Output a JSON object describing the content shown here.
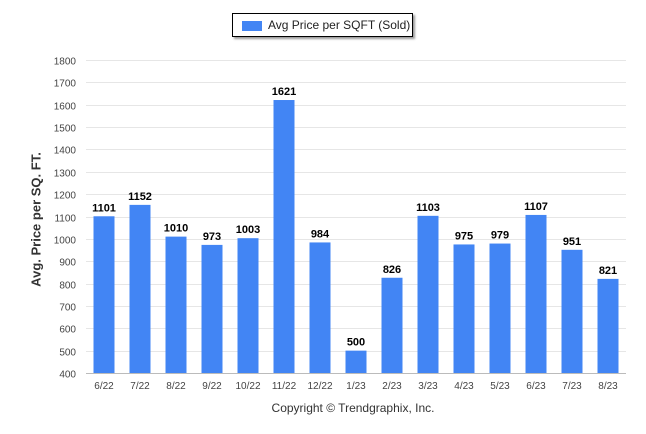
{
  "chart_data": {
    "type": "bar",
    "categories": [
      "6/22",
      "7/22",
      "8/22",
      "9/22",
      "10/22",
      "11/22",
      "12/22",
      "1/23",
      "2/23",
      "3/23",
      "4/23",
      "5/23",
      "6/23",
      "7/23",
      "8/23"
    ],
    "series": [
      {
        "name": "Avg Price per SQFT (Sold)",
        "values": [
          1101,
          1152,
          1010,
          973,
          1003,
          1621,
          984,
          500,
          826,
          1103,
          975,
          979,
          1107,
          951,
          821
        ],
        "color": "#4285f4"
      }
    ],
    "ylabel": "Avg. Price per SQ. FT.",
    "xlabel": "",
    "ylim": [
      400,
      1800
    ],
    "yticks": [
      400,
      500,
      600,
      700,
      800,
      900,
      1000,
      1100,
      1200,
      1300,
      1400,
      1500,
      1600,
      1700,
      1800
    ],
    "grid": true,
    "legend_position": "top-center",
    "data_labels": true
  },
  "footer": {
    "copyright": "Copyright © Trendgraphix, Inc."
  }
}
